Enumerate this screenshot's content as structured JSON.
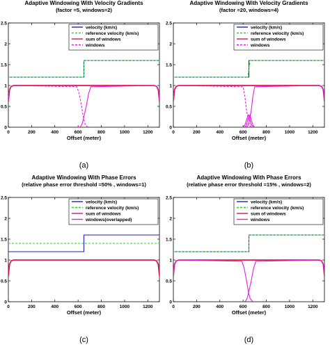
{
  "chart_data": [
    {
      "type": "line",
      "caption": "(a)",
      "title": "Adaptive Windowing With Velocity Gradients",
      "subtitle": "(factor =5, windows=2)",
      "xlabel": "Offset (meter)",
      "ylabel": "",
      "xlim": [
        0,
        1300
      ],
      "ylim": [
        0,
        2.5
      ],
      "xticks": [
        0,
        200,
        400,
        600,
        800,
        1000,
        1200
      ],
      "yticks": [
        0,
        0.5,
        1,
        1.5,
        2,
        2.5
      ],
      "legend_position": "top-right",
      "series": [
        {
          "name": "velocity (km/s)",
          "color": "#1f1fbf",
          "style": "solid",
          "x": [
            0,
            650,
            650,
            1300
          ],
          "y": [
            1.2,
            1.2,
            1.6,
            1.6
          ]
        },
        {
          "name": "reference velocity (km/s)",
          "color": "#22dd22",
          "style": "dashed",
          "x": [
            0,
            650,
            650,
            1300
          ],
          "y": [
            1.2,
            1.2,
            1.6,
            1.6
          ]
        },
        {
          "name": "sum of windows",
          "color": "#e0144f",
          "style": "solid",
          "x": [
            0,
            10,
            25,
            45,
            1255,
            1275,
            1290,
            1300
          ],
          "y": [
            0.62,
            0.9,
            0.98,
            1.0,
            1.0,
            0.98,
            0.9,
            0.62
          ]
        },
        {
          "name": "windows",
          "color": "#e020e0",
          "style": "dashed",
          "x": [
            0,
            10,
            25,
            45,
            590,
            610,
            630,
            645,
            660,
            680,
            700
          ],
          "y": [
            0.62,
            0.9,
            0.98,
            1.0,
            0.97,
            0.8,
            0.5,
            0.25,
            0.08,
            0.01,
            0.0
          ]
        },
        {
          "name": "",
          "color": "#e020e0",
          "style": "solid",
          "x": [
            600,
            620,
            635,
            650,
            670,
            690,
            710,
            1255,
            1275,
            1290,
            1300
          ],
          "y": [
            0.0,
            0.01,
            0.08,
            0.25,
            0.5,
            0.8,
            0.97,
            1.0,
            0.98,
            0.9,
            0.62
          ]
        }
      ]
    },
    {
      "type": "line",
      "caption": "(b)",
      "title": "Adaptive Windowing With Velocity Gradients",
      "subtitle": "(factor =20, windows=4)",
      "xlabel": "Offset (meter)",
      "ylabel": "",
      "xlim": [
        0,
        1300
      ],
      "ylim": [
        0,
        2.5
      ],
      "xticks": [
        0,
        200,
        400,
        600,
        800,
        1000,
        1200
      ],
      "yticks": [
        0,
        0.5,
        1,
        1.5,
        2,
        2.5
      ],
      "legend_position": "top-right",
      "series": [
        {
          "name": "velocity (km/s)",
          "color": "#1f1fbf",
          "style": "solid",
          "x": [
            0,
            650,
            650,
            1300
          ],
          "y": [
            1.2,
            1.2,
            1.6,
            1.6
          ]
        },
        {
          "name": "reference velocity (km/s)",
          "color": "#22dd22",
          "style": "dashed",
          "x": [
            0,
            640,
            650,
            660,
            1300
          ],
          "y": [
            1.2,
            1.2,
            1.4,
            1.6,
            1.6
          ]
        },
        {
          "name": "sum of windows",
          "color": "#e0144f",
          "style": "solid",
          "x": [
            0,
            10,
            25,
            45,
            1255,
            1275,
            1290,
            1300
          ],
          "y": [
            0.62,
            0.9,
            0.98,
            1.0,
            1.0,
            0.98,
            0.9,
            0.62
          ]
        },
        {
          "name": "windows",
          "color": "#e020e0",
          "style": "dashed",
          "x": [
            0,
            10,
            25,
            45,
            600,
            615,
            630,
            645,
            660,
            680
          ],
          "y": [
            0.62,
            0.9,
            0.98,
            1.0,
            0.97,
            0.75,
            0.4,
            0.15,
            0.03,
            0.0
          ]
        },
        {
          "name": "",
          "color": "#e020e0",
          "style": "solid",
          "x": [
            600,
            615,
            630,
            645,
            655,
            670,
            690
          ],
          "y": [
            0.0,
            0.05,
            0.18,
            0.3,
            0.22,
            0.06,
            0.0
          ]
        },
        {
          "name": "",
          "color": "#e020e0",
          "style": "solid",
          "x": [
            615,
            630,
            645,
            660,
            670,
            685,
            700
          ],
          "y": [
            0.0,
            0.06,
            0.22,
            0.3,
            0.18,
            0.05,
            0.0
          ]
        },
        {
          "name": "",
          "color": "#e020e0",
          "style": "solid",
          "x": [
            620,
            640,
            655,
            670,
            685,
            700,
            1255,
            1275,
            1290,
            1300
          ],
          "y": [
            0.0,
            0.03,
            0.15,
            0.4,
            0.75,
            0.97,
            1.0,
            0.98,
            0.9,
            0.62
          ]
        }
      ]
    },
    {
      "type": "line",
      "caption": "(c)",
      "title": "Adaptive Windowing With Phase Errors",
      "subtitle": "(relative phase error threshold =50% , windows=1)",
      "xlabel": "Offset (meter)",
      "ylabel": "",
      "xlim": [
        0,
        1300
      ],
      "ylim": [
        0,
        2.5
      ],
      "xticks": [
        0,
        200,
        400,
        600,
        800,
        1000,
        1200
      ],
      "yticks": [
        0,
        0.5,
        1,
        1.5,
        2,
        2.5
      ],
      "legend_position": "top-right",
      "series": [
        {
          "name": "velocity (km/s)",
          "color": "#1f1fbf",
          "style": "solid",
          "x": [
            0,
            650,
            650,
            1300
          ],
          "y": [
            1.2,
            1.2,
            1.6,
            1.6
          ]
        },
        {
          "name": "reference velocity (km/s)",
          "color": "#22dd22",
          "style": "dashed",
          "x": [
            0,
            1300
          ],
          "y": [
            1.4,
            1.4
          ]
        },
        {
          "name": "sum of windows",
          "color": "#e0144f",
          "style": "solid",
          "x": [
            0,
            10,
            25,
            45,
            1255,
            1275,
            1290,
            1300
          ],
          "y": [
            0.62,
            0.9,
            0.98,
            1.0,
            1.0,
            0.98,
            0.9,
            0.62
          ]
        },
        {
          "name": "windows(overlapped)",
          "color": "#e020e0",
          "style": "solid",
          "x": [],
          "y": []
        }
      ]
    },
    {
      "type": "line",
      "caption": "(d)",
      "title": "Adaptive Windowing With Phase Errors",
      "subtitle": "(relative phase error threshold =15% , windows=2)",
      "xlabel": "Offset (meter)",
      "ylabel": "",
      "xlim": [
        0,
        1300
      ],
      "ylim": [
        0,
        2.5
      ],
      "xticks": [
        0,
        200,
        400,
        600,
        800,
        1000,
        1200
      ],
      "yticks": [
        0,
        0.5,
        1,
        1.5,
        2,
        2.5
      ],
      "legend_position": "top-right",
      "series": [
        {
          "name": "velocity (km/s)",
          "color": "#1f1fbf",
          "style": "solid",
          "x": [
            0,
            650,
            650,
            1300
          ],
          "y": [
            1.2,
            1.2,
            1.6,
            1.6
          ]
        },
        {
          "name": "reference velocity (km/s)",
          "color": "#22dd22",
          "style": "dashed",
          "x": [
            0,
            650,
            650,
            1300
          ],
          "y": [
            1.2,
            1.2,
            1.6,
            1.6
          ]
        },
        {
          "name": "sum of windows",
          "color": "#e0144f",
          "style": "solid",
          "x": [
            0,
            10,
            25,
            45,
            1255,
            1275,
            1290,
            1300
          ],
          "y": [
            0.62,
            0.9,
            0.98,
            1.0,
            1.0,
            0.98,
            0.9,
            0.62
          ]
        },
        {
          "name": "windows",
          "color": "#e020e0",
          "style": "solid",
          "x": [
            0,
            10,
            25,
            45,
            590,
            610,
            630,
            645,
            660,
            680,
            700
          ],
          "y": [
            0.62,
            0.9,
            0.98,
            1.0,
            0.97,
            0.8,
            0.5,
            0.25,
            0.08,
            0.01,
            0.0
          ]
        },
        {
          "name": "",
          "color": "#e020e0",
          "style": "solid",
          "x": [
            600,
            620,
            635,
            650,
            670,
            690,
            710,
            1255,
            1275,
            1290,
            1300
          ],
          "y": [
            0.0,
            0.01,
            0.08,
            0.25,
            0.5,
            0.8,
            0.97,
            1.0,
            0.98,
            0.9,
            0.62
          ]
        }
      ]
    }
  ]
}
